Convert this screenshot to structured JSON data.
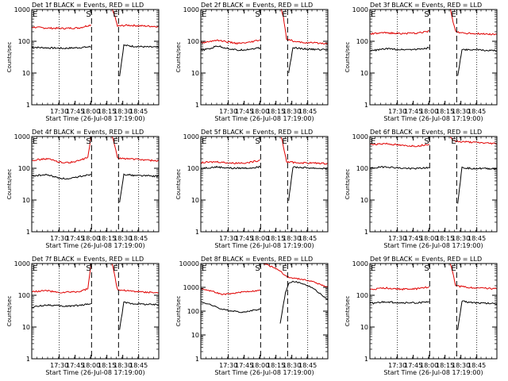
{
  "panel_titles": [
    "Det 1f BLACK = Events, RED = LLD",
    "Det 2f BLACK = Events, RED = LLD",
    "Det 3f BLACK = Events, RED = LLD",
    "Det 4f BLACK = Events, RED = LLD",
    "Det 5f BLACK = Events, RED = LLD",
    "Det 6f BLACK = Events, RED = LLD",
    "Det 7f BLACK = Events, RED = LLD",
    "Det 8f BLACK = Events, RED = LLD",
    "Det 9f BLACK = Events, RED = LLD"
  ],
  "xlabel": "Start Time (26-Jul-08 17:19:00)",
  "ylabel": "Counts/sec",
  "colors": {
    "events": "#000000",
    "lld": "#e00000",
    "axes": "#000000"
  },
  "chart_data": [
    {
      "type": "line",
      "title": "Det 1f BLACK = Events, RED = LLD",
      "x_ticks": [
        "17:30",
        "17:45",
        "18:00",
        "18:15",
        "18:30",
        "18:45"
      ],
      "y_ticks": [
        "1",
        "10",
        "100",
        "1000"
      ],
      "ylim": [
        1,
        1000
      ],
      "x_range_minutes": [
        -15,
        105
      ],
      "log_y": true,
      "markers": [
        {
          "label": "S",
          "x": 41.5,
          "style": "dashed"
        },
        {
          "label": "E",
          "x": 67,
          "style": "dashed"
        }
      ],
      "dotted_lines": [
        11,
        86
      ],
      "series": [
        {
          "name": "Events",
          "color": "black",
          "x": [
            -15,
            0,
            15,
            30,
            41
          ],
          "values": [
            65,
            62,
            60,
            63,
            67
          ]
        },
        {
          "name": "LLD",
          "color": "red",
          "x": [
            -15,
            0,
            15,
            30,
            41
          ],
          "values": [
            280,
            260,
            255,
            265,
            330
          ]
        },
        {
          "name": "Events",
          "color": "black",
          "x": [
            68,
            72,
            80,
            95,
            105
          ],
          "values": [
            8,
            75,
            70,
            66,
            65
          ]
        },
        {
          "name": "LLD",
          "color": "red",
          "x": [
            61,
            63,
            66,
            75,
            85,
            95,
            105
          ],
          "values": [
            1000,
            700,
            300,
            320,
            310,
            300,
            290
          ]
        }
      ]
    },
    {
      "type": "line",
      "title": "Det 2f BLACK = Events, RED = LLD",
      "x_ticks": [
        "17:30",
        "17:45",
        "18:00",
        "18:15",
        "18:30",
        "18:45"
      ],
      "y_ticks": [
        "1",
        "10",
        "100",
        "1000"
      ],
      "ylim": [
        1,
        1000
      ],
      "x_range_minutes": [
        -15,
        105
      ],
      "log_y": true,
      "markers": [
        {
          "label": "S",
          "x": 41.5,
          "style": "dashed"
        },
        {
          "label": "E",
          "x": 67,
          "style": "dashed"
        }
      ],
      "dotted_lines": [
        11,
        86
      ],
      "series": [
        {
          "name": "Events",
          "color": "black",
          "x": [
            -15,
            -5,
            0,
            10,
            20,
            30,
            41
          ],
          "values": [
            52,
            60,
            72,
            60,
            52,
            56,
            62
          ]
        },
        {
          "name": "LLD",
          "color": "red",
          "x": [
            -15,
            -5,
            0,
            10,
            20,
            30,
            41
          ],
          "values": [
            88,
            100,
            110,
            95,
            85,
            90,
            110
          ]
        },
        {
          "name": "Events",
          "color": "black",
          "x": [
            68,
            72,
            80,
            95,
            105
          ],
          "values": [
            10,
            62,
            58,
            55,
            55
          ]
        },
        {
          "name": "LLD",
          "color": "red",
          "x": [
            61,
            63,
            66,
            75,
            85,
            95,
            105
          ],
          "values": [
            1000,
            600,
            120,
            95,
            90,
            88,
            85
          ]
        }
      ]
    },
    {
      "type": "line",
      "title": "Det 3f BLACK = Events, RED = LLD",
      "x_ticks": [
        "17:30",
        "17:45",
        "18:00",
        "18:15",
        "18:30",
        "18:45"
      ],
      "y_ticks": [
        "1",
        "10",
        "100",
        "1000"
      ],
      "ylim": [
        1,
        1000
      ],
      "x_range_minutes": [
        -15,
        105
      ],
      "log_y": true,
      "markers": [
        {
          "label": "S",
          "x": 41.5,
          "style": "dashed"
        },
        {
          "label": "E",
          "x": 67,
          "style": "dashed"
        }
      ],
      "dotted_lines": [
        11,
        86
      ],
      "series": [
        {
          "name": "Events",
          "color": "black",
          "x": [
            -15,
            0,
            15,
            30,
            41
          ],
          "values": [
            50,
            58,
            55,
            56,
            62
          ]
        },
        {
          "name": "LLD",
          "color": "red",
          "x": [
            -15,
            0,
            15,
            30,
            41
          ],
          "values": [
            170,
            185,
            175,
            180,
            210
          ]
        },
        {
          "name": "Events",
          "color": "black",
          "x": [
            68,
            72,
            80,
            95,
            105
          ],
          "values": [
            8,
            55,
            55,
            52,
            50
          ]
        },
        {
          "name": "LLD",
          "color": "red",
          "x": [
            61,
            63,
            66,
            75,
            85,
            95,
            105
          ],
          "values": [
            1000,
            500,
            200,
            180,
            175,
            170,
            165
          ]
        }
      ]
    },
    {
      "type": "line",
      "title": "Det 4f BLACK = Events, RED = LLD",
      "x_ticks": [
        "17:30",
        "17:45",
        "18:00",
        "18:15",
        "18:30",
        "18:45"
      ],
      "y_ticks": [
        "1",
        "10",
        "100",
        "1000"
      ],
      "ylim": [
        1,
        1000
      ],
      "x_range_minutes": [
        -15,
        105
      ],
      "log_y": true,
      "markers": [
        {
          "label": "S",
          "x": 41.5,
          "style": "dashed"
        },
        {
          "label": "E",
          "x": 67,
          "style": "dashed"
        }
      ],
      "dotted_lines": [
        11,
        86
      ],
      "series": [
        {
          "name": "Events",
          "color": "black",
          "x": [
            -15,
            0,
            10,
            20,
            30,
            41
          ],
          "values": [
            58,
            62,
            50,
            45,
            55,
            65
          ]
        },
        {
          "name": "LLD",
          "color": "red",
          "x": [
            -15,
            0,
            10,
            20,
            30,
            38,
            41
          ],
          "values": [
            180,
            200,
            160,
            150,
            175,
            220,
            1000
          ]
        },
        {
          "name": "Events",
          "color": "black",
          "x": [
            68,
            72,
            80,
            95,
            105
          ],
          "values": [
            8,
            65,
            60,
            58,
            56
          ]
        },
        {
          "name": "LLD",
          "color": "red",
          "x": [
            61,
            63,
            66,
            75,
            85,
            95,
            105
          ],
          "values": [
            1000,
            600,
            210,
            200,
            190,
            180,
            170
          ]
        }
      ]
    },
    {
      "type": "line",
      "title": "Det 5f BLACK = Events, RED = LLD",
      "x_ticks": [
        "17:30",
        "17:45",
        "18:00",
        "18:15",
        "18:30",
        "18:45"
      ],
      "y_ticks": [
        "1",
        "10",
        "100",
        "1000"
      ],
      "ylim": [
        1,
        1000
      ],
      "x_range_minutes": [
        -15,
        105
      ],
      "log_y": true,
      "markers": [
        {
          "label": "S",
          "x": 41.5,
          "style": "dashed"
        },
        {
          "label": "E",
          "x": 67,
          "style": "dashed"
        }
      ],
      "dotted_lines": [
        11,
        86
      ],
      "series": [
        {
          "name": "Events",
          "color": "black",
          "x": [
            -15,
            0,
            15,
            30,
            41
          ],
          "values": [
            100,
            110,
            100,
            102,
            110
          ]
        },
        {
          "name": "LLD",
          "color": "red",
          "x": [
            -15,
            0,
            15,
            30,
            41
          ],
          "values": [
            150,
            160,
            145,
            150,
            180
          ]
        },
        {
          "name": "Events",
          "color": "black",
          "x": [
            68,
            72,
            80,
            95,
            105
          ],
          "values": [
            10,
            110,
            105,
            100,
            98
          ]
        },
        {
          "name": "LLD",
          "color": "red",
          "x": [
            61,
            63,
            66,
            75,
            85,
            95,
            105
          ],
          "values": [
            1000,
            500,
            160,
            150,
            148,
            145,
            140
          ]
        }
      ]
    },
    {
      "type": "line",
      "title": "Det 6f BLACK = Events, RED = LLD",
      "x_ticks": [
        "17:30",
        "17:45",
        "18:00",
        "18:15",
        "18:30",
        "18:45"
      ],
      "y_ticks": [
        "1",
        "10",
        "100",
        "1000"
      ],
      "ylim": [
        1,
        1000
      ],
      "x_range_minutes": [
        -15,
        105
      ],
      "log_y": true,
      "markers": [
        {
          "label": "S",
          "x": 41.5,
          "style": "dashed"
        },
        {
          "label": "E",
          "x": 67,
          "style": "dashed"
        }
      ],
      "dotted_lines": [
        11,
        86
      ],
      "series": [
        {
          "name": "Events",
          "color": "black",
          "x": [
            -15,
            0,
            15,
            30,
            41
          ],
          "values": [
            100,
            112,
            100,
            98,
            105
          ]
        },
        {
          "name": "LLD",
          "color": "red",
          "x": [
            -15,
            0,
            15,
            30,
            41
          ],
          "values": [
            560,
            600,
            520,
            500,
            580
          ]
        },
        {
          "name": "Events",
          "color": "black",
          "x": [
            68,
            72,
            80,
            95,
            105
          ],
          "values": [
            8,
            105,
            100,
            98,
            96
          ]
        },
        {
          "name": "LLD",
          "color": "red",
          "x": [
            61,
            63,
            66,
            75,
            85,
            95,
            105
          ],
          "values": [
            1000,
            800,
            700,
            680,
            650,
            620,
            600
          ]
        }
      ]
    },
    {
      "type": "line",
      "title": "Det 7f BLACK = Events, RED = LLD",
      "x_ticks": [
        "17:30",
        "17:45",
        "18:00",
        "18:15",
        "18:30",
        "18:45"
      ],
      "y_ticks": [
        "1",
        "10",
        "100",
        "1000"
      ],
      "ylim": [
        1,
        1000
      ],
      "x_range_minutes": [
        -15,
        105
      ],
      "log_y": true,
      "markers": [
        {
          "label": "S",
          "x": 41.5,
          "style": "dashed"
        },
        {
          "label": "E",
          "x": 67,
          "style": "dashed"
        }
      ],
      "dotted_lines": [
        11,
        86
      ],
      "series": [
        {
          "name": "Events",
          "color": "black",
          "x": [
            -15,
            0,
            15,
            30,
            41
          ],
          "values": [
            42,
            50,
            45,
            48,
            55
          ]
        },
        {
          "name": "LLD",
          "color": "red",
          "x": [
            -15,
            0,
            10,
            20,
            30,
            38,
            41
          ],
          "values": [
            130,
            140,
            120,
            125,
            130,
            160,
            1000
          ]
        },
        {
          "name": "Events",
          "color": "black",
          "x": [
            68,
            72,
            80,
            95,
            105
          ],
          "values": [
            8,
            60,
            55,
            52,
            50
          ]
        },
        {
          "name": "LLD",
          "color": "red",
          "x": [
            61,
            63,
            66,
            75,
            85,
            95,
            105
          ],
          "values": [
            1000,
            500,
            150,
            140,
            130,
            125,
            120
          ]
        }
      ]
    },
    {
      "type": "line",
      "title": "Det 8f BLACK = Events, RED = LLD",
      "x_ticks": [
        "17:30",
        "17:45",
        "18:00",
        "18:15",
        "18:30",
        "18:45"
      ],
      "y_ticks": [
        "1",
        "10",
        "100",
        "1000",
        "10000"
      ],
      "ylim": [
        1,
        10000
      ],
      "x_range_minutes": [
        -15,
        105
      ],
      "log_y": true,
      "markers": [
        {
          "label": "S",
          "x": 41.5,
          "style": "dashed"
        },
        {
          "label": "E",
          "x": 67,
          "style": "dashed"
        }
      ],
      "dotted_lines": [
        11,
        86
      ],
      "series": [
        {
          "name": "Events",
          "color": "black",
          "x": [
            -15,
            -5,
            5,
            15,
            25,
            35,
            41
          ],
          "values": [
            250,
            180,
            120,
            100,
            90,
            110,
            120
          ]
        },
        {
          "name": "LLD",
          "color": "red",
          "x": [
            -15,
            -5,
            5,
            15,
            25,
            35,
            41
          ],
          "values": [
            900,
            700,
            500,
            550,
            650,
            700,
            750
          ]
        },
        {
          "name": "Events",
          "color": "black",
          "x": [
            60,
            65,
            68,
            72,
            80,
            90,
            105
          ],
          "values": [
            30,
            600,
            1500,
            1800,
            1500,
            1000,
            300
          ]
        },
        {
          "name": "LLD",
          "color": "red",
          "x": [
            44,
            50,
            60,
            65,
            70,
            80,
            90,
            105
          ],
          "values": [
            10000,
            8000,
            5000,
            3000,
            2500,
            2200,
            1800,
            1000
          ]
        }
      ]
    },
    {
      "type": "line",
      "title": "Det 9f BLACK = Events, RED = LLD",
      "x_ticks": [
        "17:30",
        "17:45",
        "18:00",
        "18:15",
        "18:30",
        "18:45"
      ],
      "y_ticks": [
        "1",
        "10",
        "100",
        "1000"
      ],
      "ylim": [
        1,
        1000
      ],
      "x_range_minutes": [
        -15,
        105
      ],
      "log_y": true,
      "markers": [
        {
          "label": "S",
          "x": 41.5,
          "style": "dashed"
        },
        {
          "label": "E",
          "x": 67,
          "style": "dashed"
        }
      ],
      "dotted_lines": [
        11,
        86
      ],
      "series": [
        {
          "name": "Events",
          "color": "black",
          "x": [
            -15,
            0,
            15,
            30,
            41
          ],
          "values": [
            55,
            62,
            58,
            58,
            62
          ]
        },
        {
          "name": "LLD",
          "color": "red",
          "x": [
            -15,
            0,
            15,
            30,
            41
          ],
          "values": [
            150,
            170,
            155,
            160,
            185
          ]
        },
        {
          "name": "Events",
          "color": "black",
          "x": [
            68,
            72,
            80,
            95,
            105
          ],
          "values": [
            8,
            65,
            60,
            56,
            55
          ]
        },
        {
          "name": "LLD",
          "color": "red",
          "x": [
            61,
            63,
            66,
            75,
            85,
            95,
            105
          ],
          "values": [
            1000,
            600,
            200,
            180,
            170,
            165,
            160
          ]
        }
      ]
    }
  ]
}
